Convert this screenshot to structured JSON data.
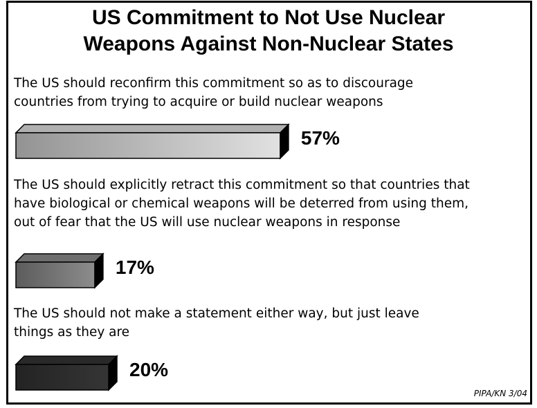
{
  "title_line1": "US Commitment to Not Use Nuclear",
  "title_line2": "Weapons Against Non-Nuclear States",
  "source": "PIPA/KN 3/04",
  "chart_data": {
    "type": "bar",
    "title": "US Commitment to Not Use Nuclear Weapons Against Non-Nuclear States",
    "categories": [
      "The US should reconfirm this commitment so as to discourage countries from trying to acquire or build nuclear weapons",
      "The US should explicitly retract this commitment so that countries that have biological or chemical weapons will be deterred from using them, out of fear that the US will use nuclear weapons in response",
      "The US should not make a statement either way, but just leave things as they are"
    ],
    "values": [
      57,
      17,
      20
    ],
    "value_labels": [
      "57%",
      "17%",
      "20%"
    ],
    "items": [
      {
        "lines": [
          "The US should reconfirm this commitment so as to discourage",
          "countries from trying to acquire or build nuclear weapons"
        ],
        "value": 57,
        "label": "57%",
        "color": "#c4c4c4"
      },
      {
        "lines": [
          "The US should explicitly retract this commitment so that countries that",
          "have biological or chemical weapons will be deterred from using them,",
          "out of fear that the US will use nuclear weapons in response"
        ],
        "value": 17,
        "label": "17%",
        "color": "#7a7a7a"
      },
      {
        "lines": [
          "The US should not make a statement either way, but just leave",
          "things as they are"
        ],
        "value": 20,
        "label": "20%",
        "color": "#2e2e2e"
      }
    ]
  }
}
